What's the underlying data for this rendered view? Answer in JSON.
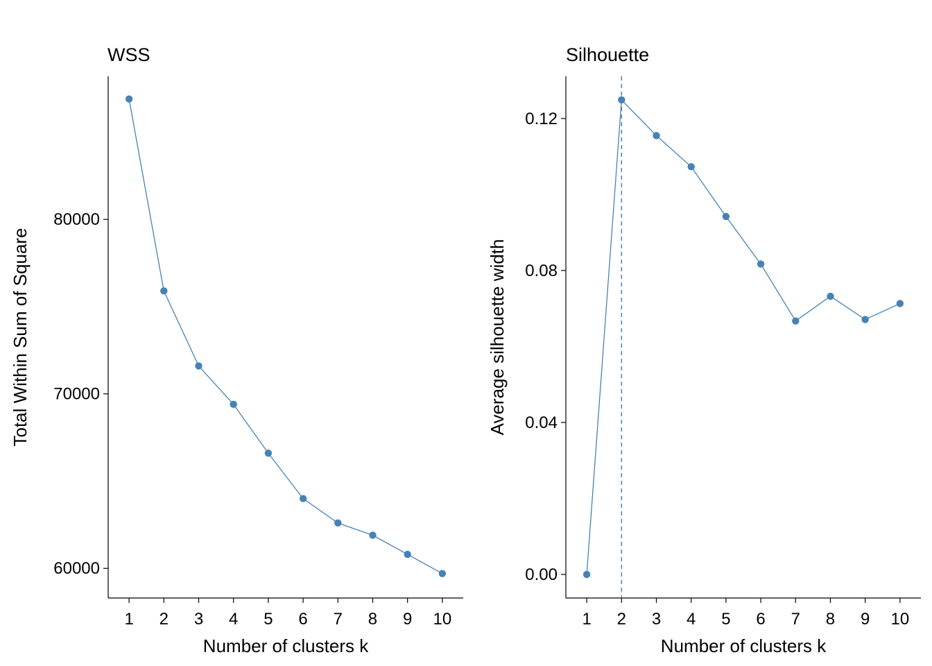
{
  "colors": {
    "series": "#4682B4",
    "axis": "#000000",
    "background": "#ffffff"
  },
  "chart_data": [
    {
      "type": "line",
      "title": "WSS",
      "xlabel": "Number of clusters k",
      "ylabel": "Total Within Sum of Square",
      "x": [
        1,
        2,
        3,
        4,
        5,
        6,
        7,
        8,
        9,
        10
      ],
      "x_tick_labels": [
        "1",
        "2",
        "3",
        "4",
        "5",
        "6",
        "7",
        "8",
        "9",
        "10"
      ],
      "y_ticks": [
        60000,
        70000,
        80000
      ],
      "y_tick_labels": [
        "60000",
        "70000",
        "80000"
      ],
      "ylim": [
        58300,
        88200
      ],
      "xlim": [
        0.4,
        10.6
      ],
      "grid": false,
      "series": [
        {
          "values": [
            86900,
            75900,
            71600,
            69400,
            66600,
            64000,
            62600,
            61900,
            60800,
            59700
          ]
        }
      ]
    },
    {
      "type": "line",
      "title": "Silhouette",
      "xlabel": "Number of clusters k",
      "ylabel": "Average silhouette width",
      "x": [
        1,
        2,
        3,
        4,
        5,
        6,
        7,
        8,
        9,
        10
      ],
      "x_tick_labels": [
        "1",
        "2",
        "3",
        "4",
        "5",
        "6",
        "7",
        "8",
        "9",
        "10"
      ],
      "y_ticks": [
        0.0,
        0.04,
        0.08,
        0.12
      ],
      "y_tick_labels": [
        "0.00",
        "0.04",
        "0.08",
        "0.12"
      ],
      "ylim": [
        -0.0062,
        0.1311
      ],
      "xlim": [
        0.4,
        10.6
      ],
      "grid": false,
      "optimal_k": 2,
      "series": [
        {
          "values": [
            0.0,
            0.1249,
            0.1155,
            0.1073,
            0.0942,
            0.0817,
            0.0667,
            0.0732,
            0.0671,
            0.0713
          ]
        }
      ]
    }
  ]
}
